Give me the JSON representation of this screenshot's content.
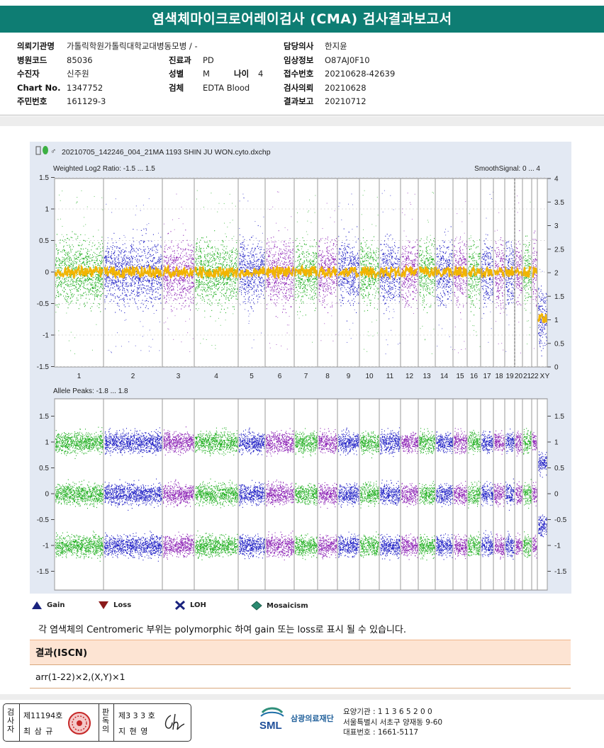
{
  "title": "염색체마이크로어레이검사 (CMA) 검사결과보고서",
  "patient": {
    "col1": [
      {
        "label": "의뢰기관명",
        "value": "가톨릭학원가톨릭대학교대병동모병 / -"
      },
      {
        "label": "병원코드",
        "value": "85036"
      },
      {
        "label": "수진자",
        "value": "신주원"
      },
      {
        "label": "Chart No.",
        "value": "1347752"
      },
      {
        "label": "주민번호",
        "value": "161129-3"
      }
    ],
    "col2": [
      {
        "label": "진료과",
        "value": "PD"
      },
      {
        "label": "성별",
        "value": "M"
      },
      {
        "label": "검체",
        "value": "EDTA Blood"
      }
    ],
    "age_label": "나이",
    "age_value": "4",
    "col3": [
      {
        "label": "담당의사",
        "value": "한지윤"
      },
      {
        "label": "임상정보",
        "value": "O87AJ0F10"
      },
      {
        "label": "접수번호",
        "value": "20210628-42639"
      },
      {
        "label": "검사의뢰",
        "value": "20210628"
      },
      {
        "label": "결과보고",
        "value": "20210712"
      }
    ]
  },
  "plot": {
    "filename": "20210705_142246_004_21MA 1193 SHIN JU WON.cyto.dxchp",
    "top_left_label": "Weighted Log2 Ratio: -1.5 ... 1.5",
    "top_right_label": "SmoothSignal: 0 ... 4",
    "bottom_left_label": "Allele Peaks: -1.8 ... 1.8",
    "top_left_ticks": [
      "1.5",
      "1",
      "0.5",
      "0",
      "-0.5",
      "-1",
      "-1.5"
    ],
    "top_right_ticks": [
      "4",
      "3.5",
      "3",
      "2.5",
      "2",
      "1.5",
      "1",
      "0.5",
      "0"
    ],
    "bottom_left_ticks": [
      "1.5",
      "1",
      "0.5",
      "0",
      "-0.5",
      "-1",
      "-1.5"
    ],
    "bottom_right_ticks": [
      "1.5",
      "1",
      "0.5",
      "0",
      "-0.5",
      "-1",
      "-1.5"
    ],
    "chromosomes": [
      "1",
      "2",
      "3",
      "4",
      "5",
      "6",
      "7",
      "8",
      "9",
      "10",
      "11",
      "12",
      "13",
      "14",
      "15",
      "16",
      "17",
      "18",
      "19",
      "20",
      "21",
      "22",
      "X",
      "Y"
    ],
    "colors": {
      "green": "#1fae1f",
      "blue": "#1c1cc4",
      "purple": "#8a1eb4",
      "orange": "#f2b400",
      "navy": "#20206e"
    }
  },
  "legend": [
    {
      "label": "Gain",
      "icon": "triangle-up-icon",
      "color": "#1a237e"
    },
    {
      "label": "Loss",
      "icon": "triangle-down-icon",
      "color": "#8b1a1a"
    },
    {
      "label": "LOH",
      "icon": "cross-icon",
      "color": "#1a237e"
    },
    {
      "label": "Mosaicism",
      "icon": "diamond-icon",
      "color": "#2a8a70"
    }
  ],
  "note": "각 염색체의 Centromeric 부위는 polymorphic 하여 gain 또는 loss로 표시 될 수 있습니다.",
  "result": {
    "heading": "결과(ISCN)",
    "value": "arr(1-22)×2,(X,Y)×1"
  },
  "signatures": {
    "inspector_label": "검사자",
    "inspector_no": "제11194호",
    "inspector_name": "최 삼 규",
    "reviewer_label": "판독의",
    "reviewer_no": "제3 3 3 호",
    "reviewer_name": "지 현 영"
  },
  "org": {
    "logo_text": "SML",
    "name": "삼광의료재단",
    "line1": "요양기관 : 1 1 3 6 5 2 0 0",
    "line2": "서울특별시 서초구 양재동 9-60",
    "line3": "대표번호 : 1661-5117"
  }
}
